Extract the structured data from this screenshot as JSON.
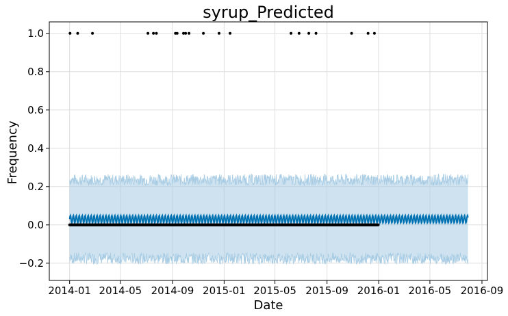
{
  "chart_data": {
    "type": "line",
    "title": "syrup_Predicted",
    "xlabel": "Date",
    "ylabel": "Frequency",
    "x_range": [
      "2013-11-14",
      "2016-09-14"
    ],
    "ylim": [
      -0.29,
      1.06
    ],
    "grid": true,
    "x_ticks": [
      "2014-01",
      "2014-05",
      "2014-09",
      "2015-01",
      "2015-05",
      "2015-09",
      "2016-01",
      "2016-05",
      "2016-09"
    ],
    "y_ticks": [
      -0.2,
      0.0,
      0.2,
      0.4,
      0.6,
      0.8,
      1.0
    ],
    "y_tick_labels": [
      "−0.2",
      "0.0",
      "0.2",
      "0.4",
      "0.6",
      "0.8",
      "1.0"
    ],
    "forecast": {
      "start": "2014-01-01",
      "end": "2016-07-30",
      "yhat_mean": 0.03,
      "yhat_weekly_amplitude": 0.02,
      "yhat_upper_mean": 0.235,
      "yhat_lower_mean": -0.175,
      "color": "#0072B2",
      "interval_color": "#A6CBE3"
    },
    "observed": {
      "color": "#000000",
      "zero_range": [
        "2014-01-01",
        "2015-12-31"
      ],
      "ones_dates": [
        "2014-01-02",
        "2014-01-20",
        "2014-02-24",
        "2014-07-05",
        "2014-07-18",
        "2014-07-25",
        "2014-09-08",
        "2014-09-12",
        "2014-09-27",
        "2014-10-02",
        "2014-10-10",
        "2014-11-13",
        "2014-12-20",
        "2015-01-15",
        "2015-06-08",
        "2015-06-27",
        "2015-07-20",
        "2015-08-06",
        "2015-10-29",
        "2015-12-07",
        "2015-12-22"
      ]
    }
  }
}
